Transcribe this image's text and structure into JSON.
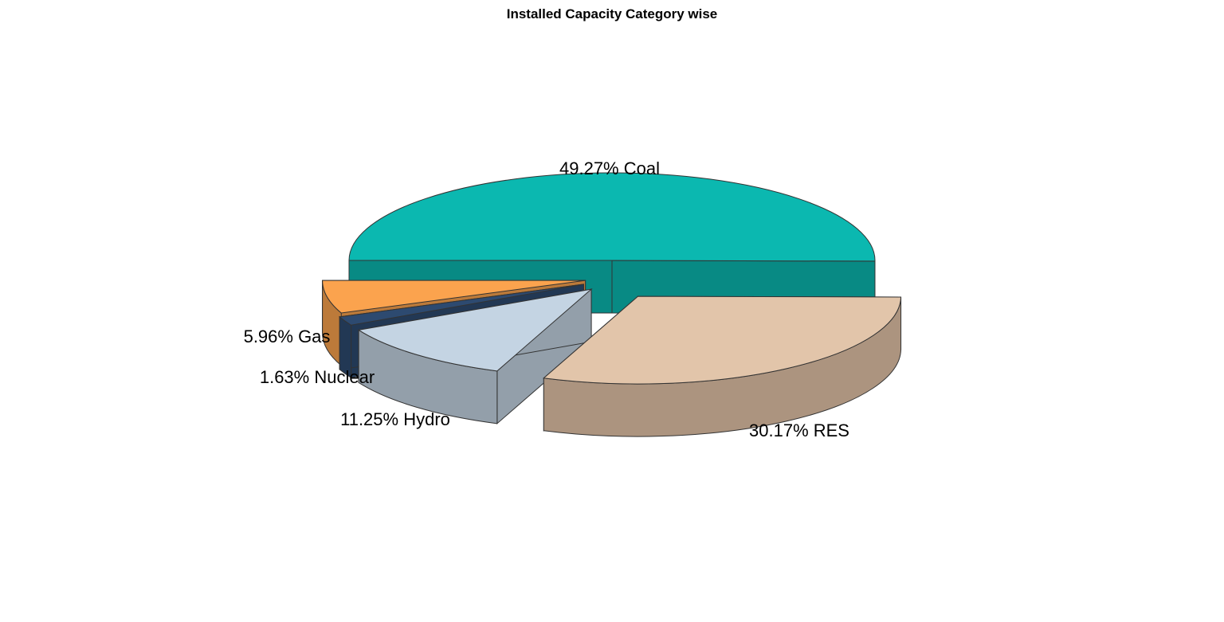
{
  "chart_data": {
    "type": "pie",
    "style": "3d-exploded",
    "title": "Installed Capacity Category wise",
    "legend": "none",
    "slices": [
      {
        "name": "Coal",
        "value": 49.27,
        "label": "49.27% Coal",
        "top_color": "#0bb8b0",
        "side_color": "#088a84"
      },
      {
        "name": "RES",
        "value": 30.17,
        "label": "30.17% RES",
        "top_color": "#e2c5aa",
        "side_color": "#ac947f"
      },
      {
        "name": "Hydro",
        "value": 11.25,
        "label": "11.25% Hydro",
        "top_color": "#c4d4e3",
        "side_color": "#939faa"
      },
      {
        "name": "Nuclear",
        "value": 1.63,
        "label": "1.63% Nuclear",
        "top_color": "#2d4a70",
        "side_color": "#223854"
      },
      {
        "name": "Gas",
        "value": 5.96,
        "label": "5.96% Gas",
        "top_color": "#fba34e",
        "side_color": "#bc7a3a"
      }
    ]
  }
}
